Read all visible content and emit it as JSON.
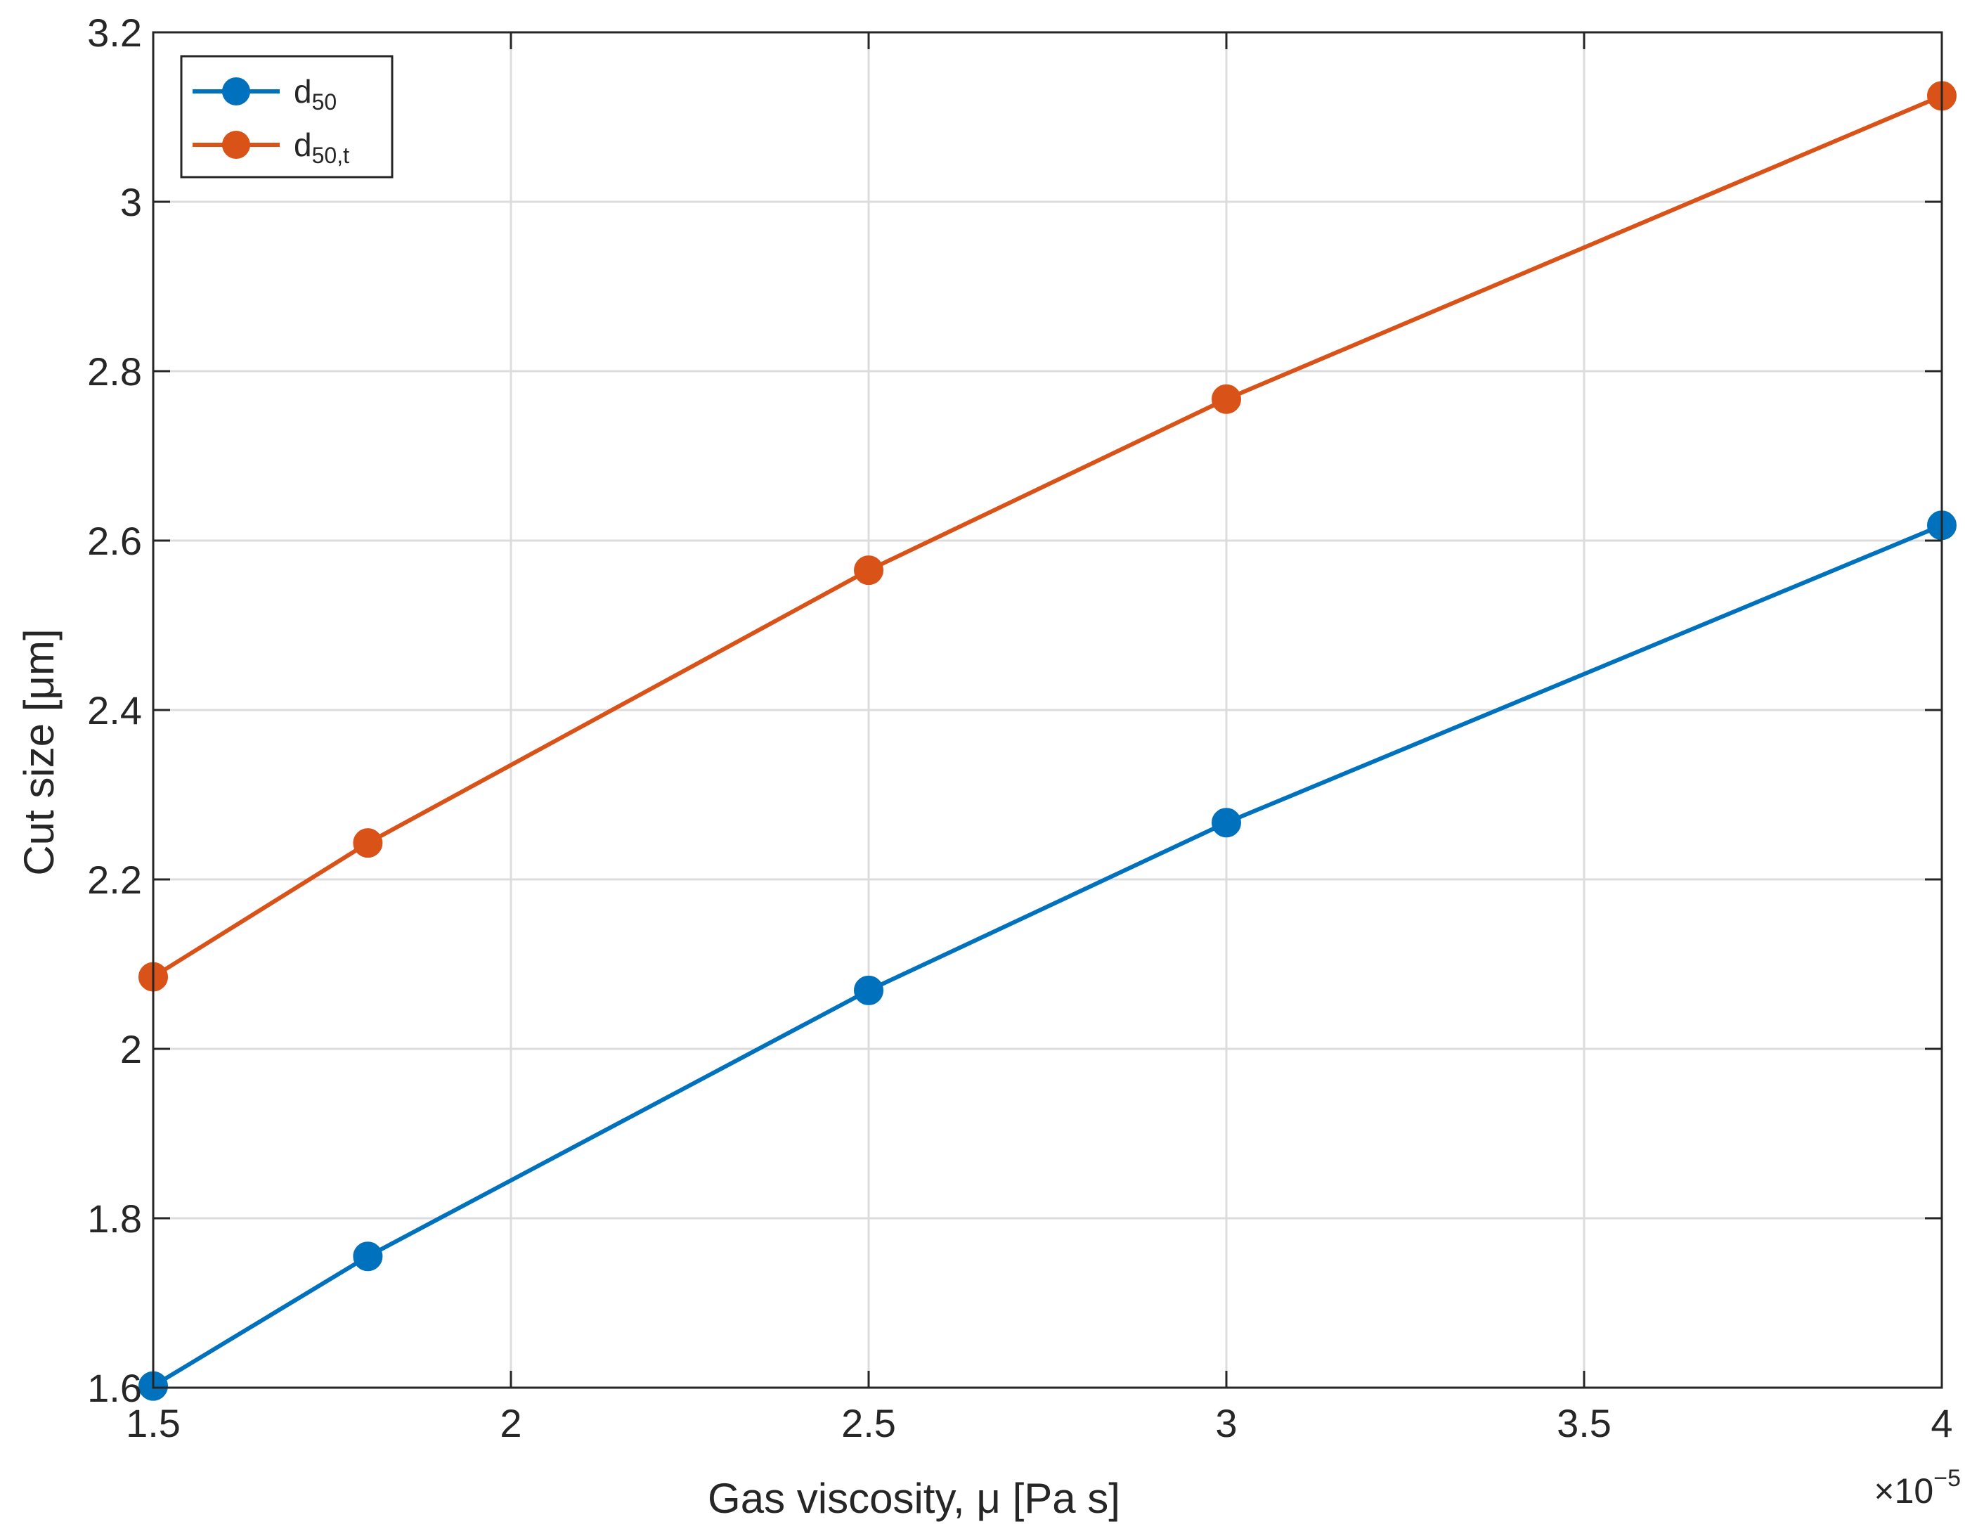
{
  "chart_data": {
    "type": "line",
    "title": "",
    "xlabel": "Gas  viscosity,  μ  [Pa  s]",
    "ylabel": "Cut size [μm]",
    "x_multiplier": {
      "base": "×10",
      "exponent": "−5"
    },
    "xlim": [
      1.5,
      4
    ],
    "ylim": [
      1.6,
      3.2
    ],
    "x_ticks": [
      1.5,
      2,
      2.5,
      3,
      3.5,
      4
    ],
    "x_tick_labels": [
      "1.5",
      "2",
      "2.5",
      "3",
      "3.5",
      "4"
    ],
    "y_ticks": [
      1.6,
      1.8,
      2,
      2.2,
      2.4,
      2.6,
      2.8,
      3,
      3.2
    ],
    "y_tick_labels": [
      "1.6",
      "1.8",
      "2",
      "2.2",
      "2.4",
      "2.6",
      "2.8",
      "3",
      "3.2"
    ],
    "grid": true,
    "legend_placement": "top-left",
    "series": [
      {
        "name": "d50",
        "label_main": "d",
        "label_sub": "50",
        "color": "#0072BD",
        "x": [
          1.5,
          1.8,
          2.5,
          3.0,
          4.0
        ],
        "y": [
          1.602,
          1.755,
          2.069,
          2.267,
          2.618
        ]
      },
      {
        "name": "d50,t",
        "label_main": "d",
        "label_sub": "50,t",
        "color": "#D95319",
        "x": [
          1.5,
          1.8,
          2.5,
          3.0,
          4.0
        ],
        "y": [
          2.085,
          2.243,
          2.565,
          2.767,
          3.125
        ]
      }
    ]
  }
}
